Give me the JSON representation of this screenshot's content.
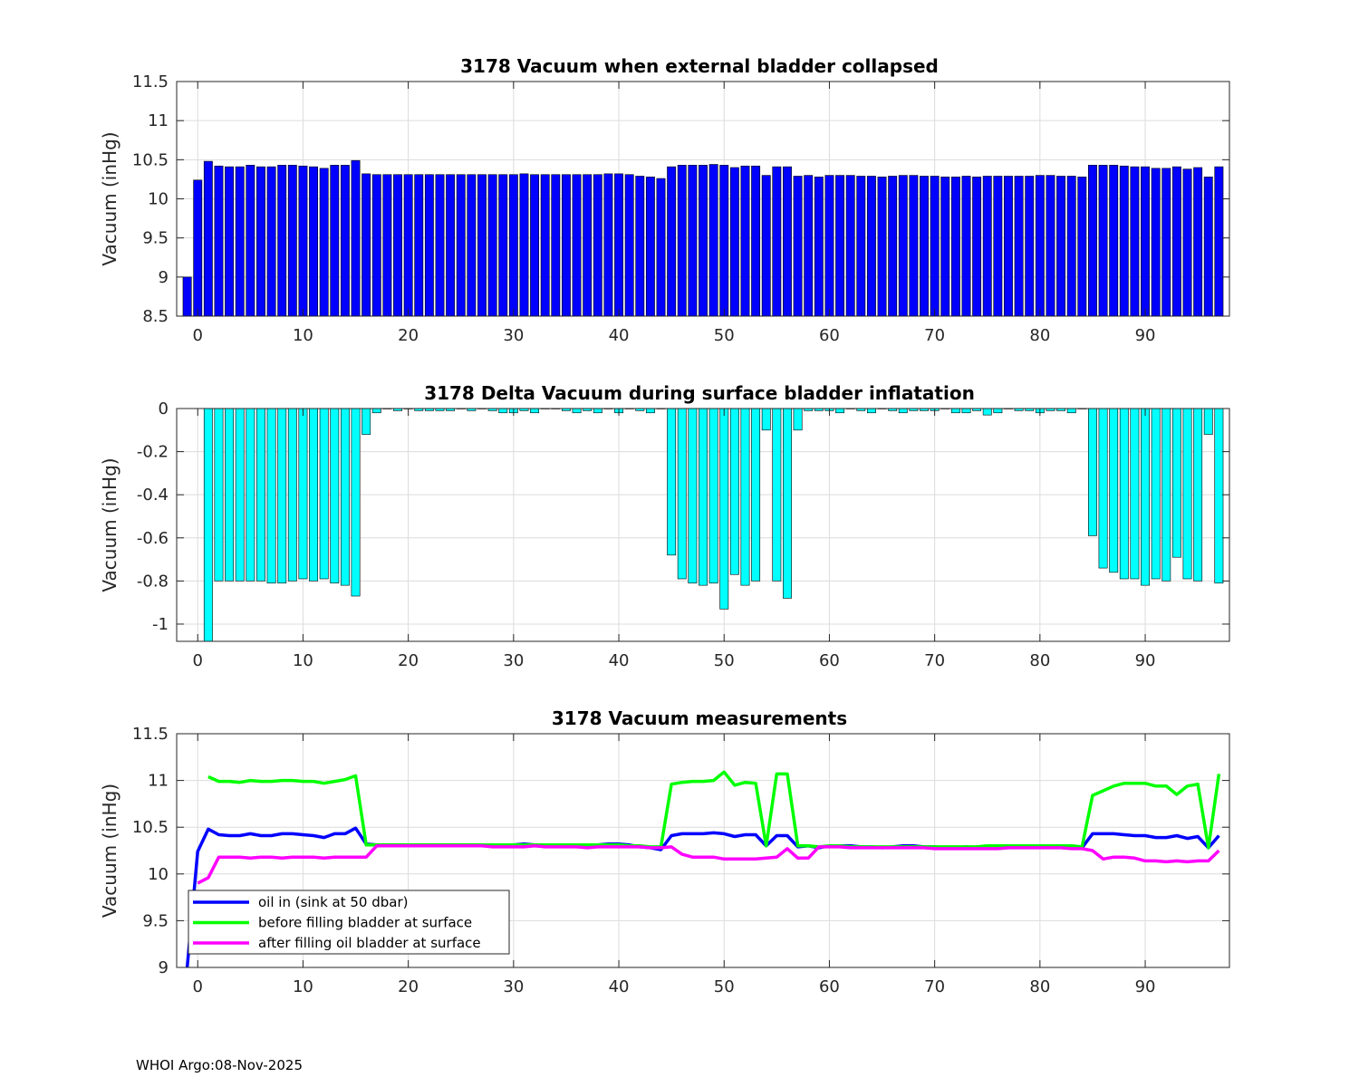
{
  "figure": {
    "footer": "WHOI Argo:08-Nov-2025",
    "colors": {
      "bar_top": "#0000ff",
      "bar_mid": "#00ffff",
      "bar_edge": "#000000",
      "grid": "#dcdcdc"
    }
  },
  "chart_data": [
    {
      "type": "bar",
      "title": "3178 Vacuum when external bladder collapsed",
      "ylabel": "Vacuum (inHg)",
      "xlabel": "",
      "xlim": [
        -2,
        98
      ],
      "ylim": [
        8.5,
        11.5
      ],
      "xticks": [
        0,
        10,
        20,
        30,
        40,
        50,
        60,
        70,
        80,
        90
      ],
      "yticks": [
        8.5,
        9,
        9.5,
        10,
        10.5,
        11,
        11.5
      ],
      "ytick_labels": [
        "8.5",
        "9",
        "9.5",
        "10",
        "10.5",
        "11",
        "11.5"
      ],
      "grid": true,
      "x": [
        -1,
        0,
        1,
        2,
        3,
        4,
        5,
        6,
        7,
        8,
        9,
        10,
        11,
        12,
        13,
        14,
        15,
        16,
        17,
        18,
        19,
        20,
        21,
        22,
        23,
        24,
        25,
        26,
        27,
        28,
        29,
        30,
        31,
        32,
        33,
        34,
        35,
        36,
        37,
        38,
        39,
        40,
        41,
        42,
        43,
        44,
        45,
        46,
        47,
        48,
        49,
        50,
        51,
        52,
        53,
        54,
        55,
        56,
        57,
        58,
        59,
        60,
        61,
        62,
        63,
        64,
        65,
        66,
        67,
        68,
        69,
        70,
        71,
        72,
        73,
        74,
        75,
        76,
        77,
        78,
        79,
        80,
        81,
        82,
        83,
        84,
        85,
        86,
        87,
        88,
        89,
        90,
        91,
        92,
        93,
        94,
        95,
        96,
        97
      ],
      "values": [
        9.0,
        10.24,
        10.48,
        10.42,
        10.41,
        10.41,
        10.43,
        10.41,
        10.41,
        10.43,
        10.43,
        10.42,
        10.41,
        10.39,
        10.43,
        10.43,
        10.49,
        10.32,
        10.31,
        10.31,
        10.31,
        10.31,
        10.31,
        10.31,
        10.31,
        10.31,
        10.31,
        10.31,
        10.31,
        10.31,
        10.31,
        10.31,
        10.32,
        10.31,
        10.31,
        10.31,
        10.31,
        10.31,
        10.31,
        10.31,
        10.32,
        10.32,
        10.31,
        10.29,
        10.28,
        10.26,
        10.41,
        10.43,
        10.43,
        10.43,
        10.44,
        10.43,
        10.4,
        10.42,
        10.42,
        10.3,
        10.41,
        10.41,
        10.29,
        10.3,
        10.28,
        10.3,
        10.3,
        10.3,
        10.29,
        10.29,
        10.28,
        10.29,
        10.3,
        10.3,
        10.29,
        10.29,
        10.28,
        10.28,
        10.29,
        10.28,
        10.29,
        10.29,
        10.29,
        10.29,
        10.29,
        10.3,
        10.3,
        10.29,
        10.29,
        10.28,
        10.43,
        10.43,
        10.43,
        10.42,
        10.41,
        10.41,
        10.39,
        10.39,
        10.41,
        10.38,
        10.4,
        10.28,
        10.41
      ]
    },
    {
      "type": "bar",
      "title": "3178 Delta Vacuum during surface bladder inflatation",
      "ylabel": "Vacuum (inHg)",
      "xlabel": "",
      "xlim": [
        -2,
        98
      ],
      "ylim": [
        -1.08,
        0
      ],
      "xticks": [
        0,
        10,
        20,
        30,
        40,
        50,
        60,
        70,
        80,
        90
      ],
      "yticks": [
        0,
        -0.2,
        -0.4,
        -0.6,
        -0.8,
        -1
      ],
      "ytick_labels": [
        "0",
        "-0.2",
        "-0.4",
        "-0.6",
        "-0.8",
        "-1"
      ],
      "grid": true,
      "x": [
        1,
        2,
        3,
        4,
        5,
        6,
        7,
        8,
        9,
        10,
        11,
        12,
        13,
        14,
        15,
        16,
        17,
        18,
        19,
        20,
        21,
        22,
        23,
        24,
        25,
        26,
        27,
        28,
        29,
        30,
        31,
        32,
        33,
        34,
        35,
        36,
        37,
        38,
        39,
        40,
        41,
        42,
        43,
        44,
        45,
        46,
        47,
        48,
        49,
        50,
        51,
        52,
        53,
        54,
        55,
        56,
        57,
        58,
        59,
        60,
        61,
        62,
        63,
        64,
        65,
        66,
        67,
        68,
        69,
        70,
        71,
        72,
        73,
        74,
        75,
        76,
        77,
        78,
        79,
        80,
        81,
        82,
        83,
        84,
        85,
        86,
        87,
        88,
        89,
        90,
        91,
        92,
        93,
        94,
        95,
        96,
        97
      ],
      "values": [
        -1.08,
        -0.8,
        -0.8,
        -0.8,
        -0.8,
        -0.8,
        -0.81,
        -0.81,
        -0.8,
        -0.79,
        -0.8,
        -0.79,
        -0.81,
        -0.82,
        -0.87,
        -0.12,
        -0.02,
        0,
        -0.01,
        0,
        -0.01,
        -0.01,
        -0.01,
        -0.01,
        0,
        -0.01,
        0,
        -0.01,
        -0.02,
        -0.02,
        -0.01,
        -0.02,
        0,
        0,
        -0.01,
        -0.02,
        -0.01,
        -0.02,
        0,
        -0.02,
        0,
        -0.01,
        -0.02,
        0,
        -0.68,
        -0.79,
        -0.81,
        -0.82,
        -0.81,
        -0.93,
        -0.77,
        -0.82,
        -0.8,
        -0.1,
        -0.8,
        -0.88,
        -0.1,
        -0.01,
        -0.01,
        -0.01,
        -0.02,
        0,
        -0.01,
        -0.02,
        0,
        -0.01,
        -0.02,
        -0.01,
        -0.01,
        -0.01,
        0,
        -0.02,
        -0.02,
        -0.01,
        -0.03,
        -0.02,
        0,
        -0.01,
        -0.01,
        -0.02,
        -0.01,
        -0.01,
        -0.02,
        0,
        -0.59,
        -0.74,
        -0.76,
        -0.79,
        -0.79,
        -0.82,
        -0.79,
        -0.8,
        -0.69,
        -0.79,
        -0.8,
        -0.12,
        -0.81
      ]
    },
    {
      "type": "line",
      "title": "3178 Vacuum measurements",
      "ylabel": "Vacuum (inHg)",
      "xlabel": "",
      "xlim": [
        -2,
        98
      ],
      "ylim": [
        9,
        11.5
      ],
      "xticks": [
        0,
        10,
        20,
        30,
        40,
        50,
        60,
        70,
        80,
        90
      ],
      "yticks": [
        9,
        9.5,
        10,
        10.5,
        11,
        11.5
      ],
      "ytick_labels": [
        "9",
        "9.5",
        "10",
        "10.5",
        "11",
        "11.5"
      ],
      "grid": true,
      "legend_position": "bottom-left",
      "series": [
        {
          "name": "oil in (sink at 50 dbar)",
          "color": "#0000ff",
          "x": [
            -1,
            0,
            1,
            2,
            3,
            4,
            5,
            6,
            7,
            8,
            9,
            10,
            11,
            12,
            13,
            14,
            15,
            16,
            17,
            18,
            19,
            20,
            21,
            22,
            23,
            24,
            25,
            26,
            27,
            28,
            29,
            30,
            31,
            32,
            33,
            34,
            35,
            36,
            37,
            38,
            39,
            40,
            41,
            42,
            43,
            44,
            45,
            46,
            47,
            48,
            49,
            50,
            51,
            52,
            53,
            54,
            55,
            56,
            57,
            58,
            59,
            60,
            61,
            62,
            63,
            64,
            65,
            66,
            67,
            68,
            69,
            70,
            71,
            72,
            73,
            74,
            75,
            76,
            77,
            78,
            79,
            80,
            81,
            82,
            83,
            84,
            85,
            86,
            87,
            88,
            89,
            90,
            91,
            92,
            93,
            94,
            95,
            96,
            97
          ],
          "values": [
            9.0,
            10.24,
            10.48,
            10.42,
            10.41,
            10.41,
            10.43,
            10.41,
            10.41,
            10.43,
            10.43,
            10.42,
            10.41,
            10.39,
            10.43,
            10.43,
            10.49,
            10.32,
            10.31,
            10.31,
            10.31,
            10.31,
            10.31,
            10.31,
            10.31,
            10.31,
            10.31,
            10.31,
            10.31,
            10.31,
            10.31,
            10.31,
            10.32,
            10.31,
            10.31,
            10.31,
            10.31,
            10.31,
            10.31,
            10.31,
            10.32,
            10.32,
            10.31,
            10.29,
            10.28,
            10.26,
            10.41,
            10.43,
            10.43,
            10.43,
            10.44,
            10.43,
            10.4,
            10.42,
            10.42,
            10.3,
            10.41,
            10.41,
            10.29,
            10.3,
            10.28,
            10.3,
            10.3,
            10.3,
            10.29,
            10.29,
            10.28,
            10.29,
            10.3,
            10.3,
            10.29,
            10.29,
            10.28,
            10.28,
            10.29,
            10.28,
            10.29,
            10.29,
            10.29,
            10.29,
            10.29,
            10.3,
            10.3,
            10.29,
            10.29,
            10.28,
            10.43,
            10.43,
            10.43,
            10.42,
            10.41,
            10.41,
            10.39,
            10.39,
            10.41,
            10.38,
            10.4,
            10.28,
            10.41
          ]
        },
        {
          "name": "before filling bladder at surface",
          "color": "#00ff00",
          "x": [
            1,
            2,
            3,
            4,
            5,
            6,
            7,
            8,
            9,
            10,
            11,
            12,
            13,
            14,
            15,
            16,
            17,
            18,
            19,
            20,
            21,
            22,
            23,
            24,
            25,
            26,
            27,
            28,
            29,
            30,
            31,
            32,
            33,
            34,
            35,
            36,
            37,
            38,
            39,
            40,
            41,
            42,
            43,
            44,
            45,
            46,
            47,
            48,
            49,
            50,
            51,
            52,
            53,
            54,
            55,
            56,
            57,
            58,
            59,
            60,
            61,
            62,
            63,
            64,
            65,
            66,
            67,
            68,
            69,
            70,
            71,
            72,
            73,
            74,
            75,
            76,
            77,
            78,
            79,
            80,
            81,
            82,
            83,
            84,
            85,
            86,
            87,
            88,
            89,
            90,
            91,
            92,
            93,
            94,
            95,
            96,
            97
          ],
          "values": [
            11.04,
            10.99,
            10.99,
            10.98,
            11.0,
            10.99,
            10.99,
            11.0,
            11.0,
            10.99,
            10.99,
            10.97,
            10.99,
            11.01,
            11.05,
            10.31,
            10.31,
            10.31,
            10.31,
            10.31,
            10.31,
            10.31,
            10.31,
            10.31,
            10.31,
            10.31,
            10.31,
            10.31,
            10.31,
            10.31,
            10.31,
            10.31,
            10.31,
            10.31,
            10.31,
            10.31,
            10.31,
            10.31,
            10.31,
            10.31,
            10.3,
            10.3,
            10.29,
            10.29,
            10.96,
            10.98,
            10.99,
            10.99,
            11.0,
            11.09,
            10.95,
            10.98,
            10.97,
            10.3,
            11.07,
            11.07,
            10.3,
            10.3,
            10.29,
            10.3,
            10.3,
            10.29,
            10.29,
            10.29,
            10.29,
            10.29,
            10.29,
            10.29,
            10.29,
            10.29,
            10.29,
            10.29,
            10.29,
            10.29,
            10.3,
            10.3,
            10.3,
            10.3,
            10.3,
            10.3,
            10.3,
            10.3,
            10.3,
            10.29,
            10.84,
            10.89,
            10.94,
            10.97,
            10.97,
            10.97,
            10.94,
            10.94,
            10.85,
            10.94,
            10.96,
            10.28,
            11.07
          ]
        },
        {
          "name": "after filling oil bladder at surface",
          "color": "#ff00ff",
          "x": [
            0,
            1,
            2,
            3,
            4,
            5,
            6,
            7,
            8,
            9,
            10,
            11,
            12,
            13,
            14,
            15,
            16,
            17,
            18,
            19,
            20,
            21,
            22,
            23,
            24,
            25,
            26,
            27,
            28,
            29,
            30,
            31,
            32,
            33,
            34,
            35,
            36,
            37,
            38,
            39,
            40,
            41,
            42,
            43,
            44,
            45,
            46,
            47,
            48,
            49,
            50,
            51,
            52,
            53,
            54,
            55,
            56,
            57,
            58,
            59,
            60,
            61,
            62,
            63,
            64,
            65,
            66,
            67,
            68,
            69,
            70,
            71,
            72,
            73,
            74,
            75,
            76,
            77,
            78,
            79,
            80,
            81,
            82,
            83,
            84,
            85,
            86,
            87,
            88,
            89,
            90,
            91,
            92,
            93,
            94,
            95,
            96,
            97
          ],
          "values": [
            9.9,
            9.96,
            10.18,
            10.18,
            10.18,
            10.17,
            10.18,
            10.18,
            10.17,
            10.18,
            10.18,
            10.18,
            10.17,
            10.18,
            10.18,
            10.18,
            10.18,
            10.3,
            10.3,
            10.3,
            10.3,
            10.3,
            10.3,
            10.3,
            10.3,
            10.3,
            10.3,
            10.3,
            10.29,
            10.29,
            10.29,
            10.29,
            10.3,
            10.29,
            10.29,
            10.29,
            10.29,
            10.28,
            10.29,
            10.29,
            10.29,
            10.29,
            10.29,
            10.28,
            10.28,
            10.29,
            10.21,
            10.18,
            10.18,
            10.18,
            10.16,
            10.16,
            10.16,
            10.16,
            10.17,
            10.18,
            10.27,
            10.17,
            10.17,
            10.29,
            10.29,
            10.29,
            10.28,
            10.28,
            10.28,
            10.28,
            10.28,
            10.28,
            10.28,
            10.28,
            10.27,
            10.27,
            10.27,
            10.27,
            10.27,
            10.27,
            10.27,
            10.28,
            10.28,
            10.28,
            10.28,
            10.28,
            10.28,
            10.27,
            10.27,
            10.25,
            10.16,
            10.18,
            10.18,
            10.17,
            10.14,
            10.14,
            10.13,
            10.14,
            10.13,
            10.14,
            10.14,
            10.25
          ]
        }
      ]
    }
  ]
}
